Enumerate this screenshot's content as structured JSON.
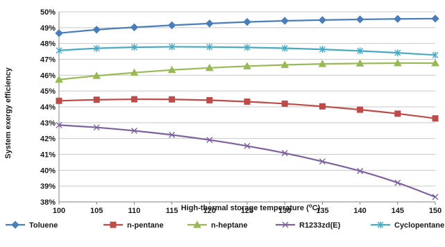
{
  "chart_data": {
    "type": "line",
    "xlabel": "High-thermal storage temperature (",
    "xlabel_unit": "o",
    "xlabel_end": "C)",
    "ylabel": "System exergy efficiency",
    "x": [
      100,
      105,
      110,
      115,
      120,
      125,
      130,
      135,
      140,
      145,
      150
    ],
    "xlim": [
      100,
      150
    ],
    "ylim": [
      38,
      50
    ],
    "yticks": [
      38,
      39,
      40,
      41,
      42,
      43,
      44,
      45,
      46,
      47,
      48,
      49,
      50
    ],
    "ytick_labels": [
      "38%",
      "39%",
      "40%",
      "41%",
      "42%",
      "43%",
      "44%",
      "45%",
      "46%",
      "47%",
      "48%",
      "49%",
      "50%"
    ],
    "xtick_labels": [
      "100",
      "105",
      "110",
      "115",
      "120",
      "125",
      "130",
      "135",
      "140",
      "145",
      "150"
    ],
    "grid": "horizontal",
    "legend_position": "bottom",
    "series": [
      {
        "name": "Toluene",
        "color": "#4a7ebb",
        "marker": "diamond",
        "values": [
          48.65,
          48.87,
          49.02,
          49.15,
          49.26,
          49.36,
          49.43,
          49.48,
          49.52,
          49.55,
          49.57
        ]
      },
      {
        "name": "n-pentane",
        "color": "#be4b48",
        "marker": "square",
        "values": [
          44.38,
          44.45,
          44.48,
          44.47,
          44.42,
          44.33,
          44.2,
          44.03,
          43.82,
          43.57,
          43.27
        ]
      },
      {
        "name": "n-heptane",
        "color": "#98b954",
        "marker": "triangle",
        "values": [
          45.72,
          45.96,
          46.16,
          46.33,
          46.46,
          46.57,
          46.65,
          46.71,
          46.74,
          46.76,
          46.76
        ]
      },
      {
        "name": "R1233zd(E)",
        "color": "#7d60a0",
        "marker": "x",
        "values": [
          42.85,
          42.7,
          42.49,
          42.23,
          41.91,
          41.53,
          41.08,
          40.55,
          39.95,
          39.21,
          38.31
        ]
      },
      {
        "name": "Cyclopentane",
        "color": "#46aac5",
        "marker": "star",
        "values": [
          47.56,
          47.69,
          47.76,
          47.79,
          47.78,
          47.75,
          47.7,
          47.63,
          47.53,
          47.41,
          47.27
        ]
      }
    ]
  }
}
